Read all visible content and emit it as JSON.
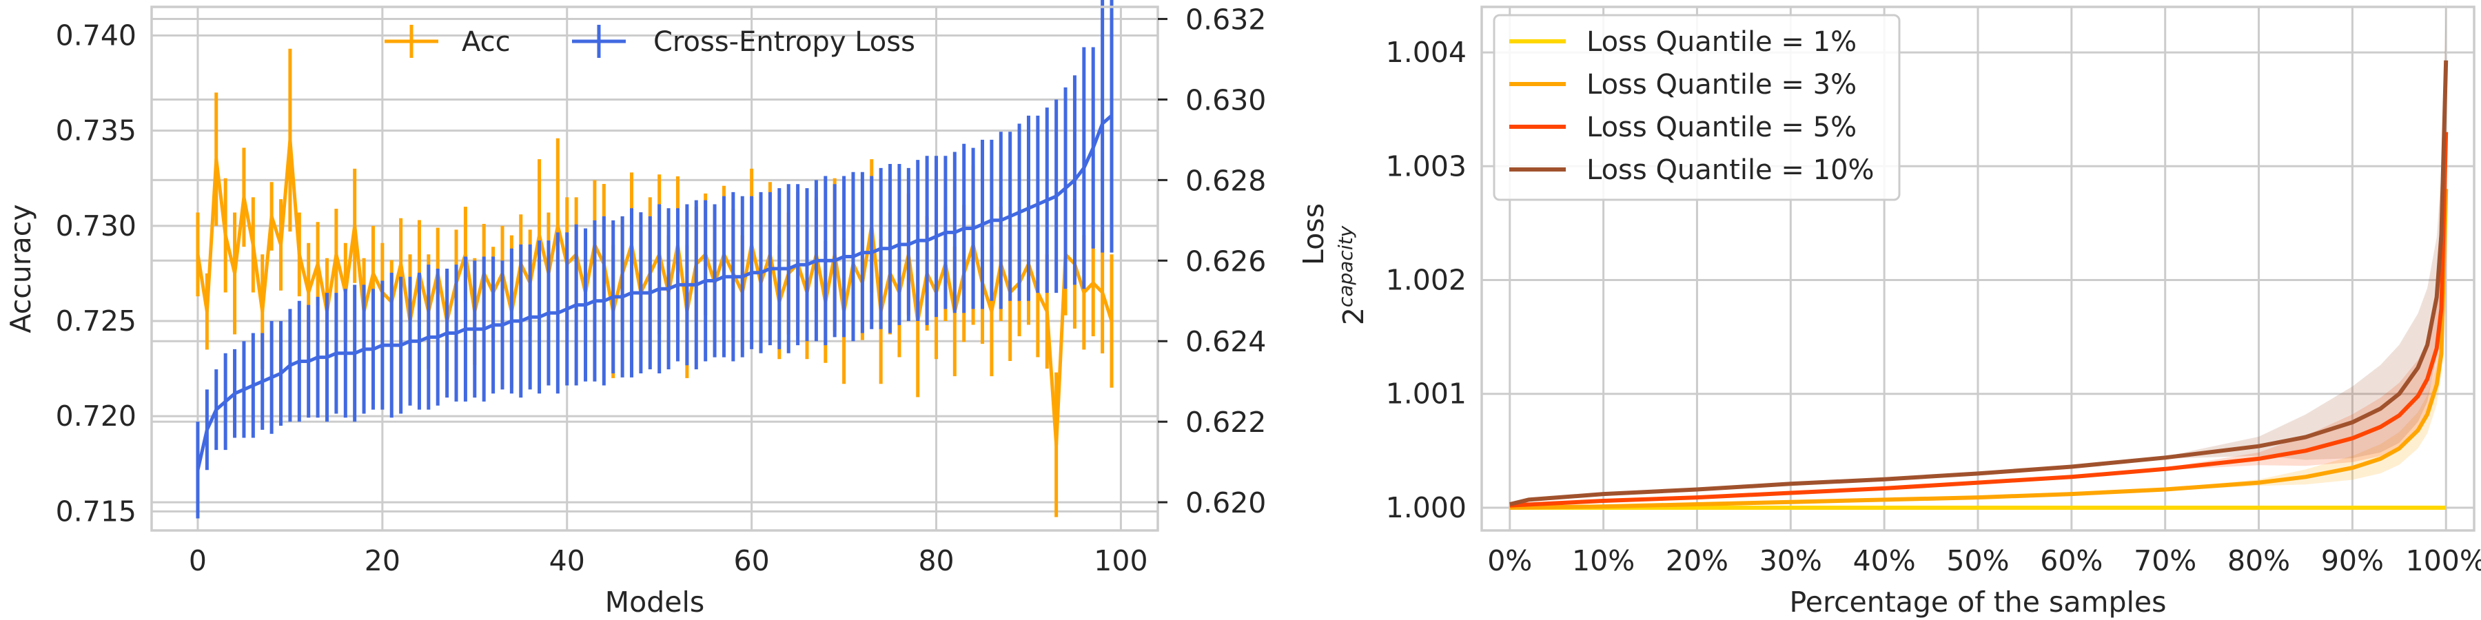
{
  "chart_data": [
    {
      "type": "line",
      "xlabel": "Models",
      "ylabel_left": "Accuracy",
      "ylabel_right": "Loss",
      "xlim": [
        -5,
        104
      ],
      "ylim_left": [
        0.714,
        0.7415
      ],
      "ylim_right": [
        0.6193,
        0.6323
      ],
      "x_ticks": [
        0,
        20,
        40,
        60,
        80,
        100
      ],
      "y_ticks_left": [
        "0.715",
        "0.720",
        "0.725",
        "0.730",
        "0.735",
        "0.740"
      ],
      "y_ticks_right": [
        "0.620",
        "0.622",
        "0.624",
        "0.626",
        "0.628",
        "0.630",
        "0.632"
      ],
      "grid": true,
      "legend_position": "top-center",
      "series": [
        {
          "name": "Acc",
          "axis": "left",
          "color": "#ffa500",
          "errorbars": true,
          "x": [
            0,
            1,
            2,
            3,
            4,
            5,
            6,
            7,
            8,
            9,
            10,
            11,
            12,
            13,
            14,
            15,
            16,
            17,
            18,
            19,
            20,
            21,
            22,
            23,
            24,
            25,
            26,
            27,
            28,
            29,
            30,
            31,
            32,
            33,
            34,
            35,
            36,
            37,
            38,
            39,
            40,
            41,
            42,
            43,
            44,
            45,
            46,
            47,
            48,
            49,
            50,
            51,
            52,
            53,
            54,
            55,
            56,
            57,
            58,
            59,
            60,
            61,
            62,
            63,
            64,
            65,
            66,
            67,
            68,
            69,
            70,
            71,
            72,
            73,
            74,
            75,
            76,
            77,
            78,
            79,
            80,
            81,
            82,
            83,
            84,
            85,
            86,
            87,
            88,
            89,
            90,
            91,
            92,
            93,
            94,
            95,
            96,
            97,
            98,
            99
          ],
          "values": [
            0.7285,
            0.7255,
            0.7335,
            0.7295,
            0.7275,
            0.7315,
            0.729,
            0.7255,
            0.7305,
            0.729,
            0.7345,
            0.7285,
            0.7265,
            0.728,
            0.7255,
            0.7285,
            0.7265,
            0.73,
            0.7255,
            0.7275,
            0.7265,
            0.726,
            0.728,
            0.725,
            0.7275,
            0.7255,
            0.7275,
            0.725,
            0.727,
            0.7285,
            0.7255,
            0.7275,
            0.7265,
            0.7275,
            0.7255,
            0.728,
            0.727,
            0.7295,
            0.7275,
            0.73,
            0.728,
            0.7285,
            0.7265,
            0.729,
            0.728,
            0.7255,
            0.7275,
            0.729,
            0.7265,
            0.7275,
            0.7285,
            0.7265,
            0.729,
            0.7255,
            0.728,
            0.7285,
            0.727,
            0.7285,
            0.7275,
            0.7265,
            0.729,
            0.727,
            0.7285,
            0.726,
            0.7275,
            0.728,
            0.7265,
            0.7285,
            0.726,
            0.7285,
            0.7255,
            0.728,
            0.727,
            0.73,
            0.7255,
            0.7275,
            0.7265,
            0.7285,
            0.725,
            0.7275,
            0.7265,
            0.728,
            0.7255,
            0.7275,
            0.729,
            0.727,
            0.7255,
            0.728,
            0.7265,
            0.727,
            0.728,
            0.7265,
            0.7255,
            0.7185,
            0.7285,
            0.728,
            0.7265,
            0.727,
            0.7265,
            0.725
          ],
          "errors": [
            0.0022,
            0.002,
            0.0035,
            0.003,
            0.0032,
            0.0026,
            0.0025,
            0.003,
            0.0018,
            0.0024,
            0.0048,
            0.0022,
            0.0026,
            0.0022,
            0.0028,
            0.0024,
            0.0026,
            0.003,
            0.0028,
            0.0025,
            0.0026,
            0.0022,
            0.0024,
            0.0035,
            0.0028,
            0.003,
            0.0024,
            0.0026,
            0.0028,
            0.0025,
            0.0028,
            0.0026,
            0.0024,
            0.0025,
            0.004,
            0.0026,
            0.0028,
            0.004,
            0.0032,
            0.0046,
            0.0035,
            0.003,
            0.0028,
            0.0034,
            0.0042,
            0.0035,
            0.003,
            0.0038,
            0.0032,
            0.004,
            0.0042,
            0.003,
            0.0036,
            0.0035,
            0.003,
            0.0032,
            0.003,
            0.0036,
            0.0034,
            0.003,
            0.004,
            0.0036,
            0.0038,
            0.003,
            0.0032,
            0.0038,
            0.0035,
            0.003,
            0.0032,
            0.004,
            0.0038,
            0.0032,
            0.003,
            0.0035,
            0.0038,
            0.0032,
            0.0034,
            0.0032,
            0.004,
            0.003,
            0.0035,
            0.003,
            0.0034,
            0.0036,
            0.0042,
            0.0032,
            0.0034,
            0.003,
            0.0036,
            0.0028,
            0.0032,
            0.0034,
            0.003,
            0.0038,
            0.0032,
            0.0034,
            0.003,
            0.0028,
            0.0032,
            0.0035
          ]
        },
        {
          "name": "Cross-Entropy Loss",
          "axis": "right",
          "color": "#4169e1",
          "errorbars": true,
          "x": [
            0,
            1,
            2,
            3,
            4,
            5,
            6,
            7,
            8,
            9,
            10,
            11,
            12,
            13,
            14,
            15,
            16,
            17,
            18,
            19,
            20,
            21,
            22,
            23,
            24,
            25,
            26,
            27,
            28,
            29,
            30,
            31,
            32,
            33,
            34,
            35,
            36,
            37,
            38,
            39,
            40,
            41,
            42,
            43,
            44,
            45,
            46,
            47,
            48,
            49,
            50,
            51,
            52,
            53,
            54,
            55,
            56,
            57,
            58,
            59,
            60,
            61,
            62,
            63,
            64,
            65,
            66,
            67,
            68,
            69,
            70,
            71,
            72,
            73,
            74,
            75,
            76,
            77,
            78,
            79,
            80,
            81,
            82,
            83,
            84,
            85,
            86,
            87,
            88,
            89,
            90,
            91,
            92,
            93,
            94,
            95,
            96,
            97,
            98,
            99
          ],
          "values": [
            0.6208,
            0.6218,
            0.6223,
            0.6225,
            0.6227,
            0.6228,
            0.6229,
            0.623,
            0.6231,
            0.6232,
            0.6234,
            0.6235,
            0.6235,
            0.6236,
            0.6236,
            0.6237,
            0.6237,
            0.6237,
            0.6238,
            0.6238,
            0.6239,
            0.6239,
            0.6239,
            0.624,
            0.624,
            0.6241,
            0.6241,
            0.6242,
            0.6242,
            0.6243,
            0.6243,
            0.6243,
            0.6244,
            0.6244,
            0.6245,
            0.6245,
            0.6246,
            0.6246,
            0.6247,
            0.6247,
            0.6248,
            0.6249,
            0.6249,
            0.625,
            0.625,
            0.6251,
            0.6251,
            0.6252,
            0.6252,
            0.6252,
            0.6253,
            0.6253,
            0.6254,
            0.6254,
            0.6254,
            0.6255,
            0.6255,
            0.6256,
            0.6256,
            0.6256,
            0.6257,
            0.6257,
            0.6258,
            0.6258,
            0.6258,
            0.6259,
            0.6259,
            0.626,
            0.626,
            0.626,
            0.6261,
            0.6261,
            0.6262,
            0.6262,
            0.6263,
            0.6263,
            0.6264,
            0.6264,
            0.6265,
            0.6265,
            0.6266,
            0.6267,
            0.6267,
            0.6268,
            0.6268,
            0.6269,
            0.627,
            0.627,
            0.6271,
            0.6272,
            0.6273,
            0.6274,
            0.6275,
            0.6276,
            0.6278,
            0.628,
            0.6283,
            0.6288,
            0.6294,
            0.6296
          ],
          "errors": [
            0.0012,
            0.001,
            0.001,
            0.0012,
            0.0011,
            0.0012,
            0.0013,
            0.0012,
            0.0014,
            0.0013,
            0.0014,
            0.0015,
            0.0014,
            0.0015,
            0.0016,
            0.0015,
            0.0016,
            0.0017,
            0.0016,
            0.0015,
            0.0016,
            0.0018,
            0.0017,
            0.0016,
            0.0017,
            0.0018,
            0.0017,
            0.0016,
            0.0017,
            0.0018,
            0.0017,
            0.0018,
            0.0017,
            0.0016,
            0.0018,
            0.0019,
            0.0018,
            0.0019,
            0.0018,
            0.002,
            0.0019,
            0.002,
            0.0019,
            0.002,
            0.0021,
            0.0019,
            0.002,
            0.0021,
            0.002,
            0.0019,
            0.0021,
            0.002,
            0.0019,
            0.002,
            0.0021,
            0.002,
            0.0019,
            0.002,
            0.0021,
            0.002,
            0.0019,
            0.002,
            0.0019,
            0.002,
            0.0021,
            0.002,
            0.0019,
            0.002,
            0.0021,
            0.0019,
            0.002,
            0.0021,
            0.002,
            0.0019,
            0.002,
            0.0021,
            0.002,
            0.0019,
            0.002,
            0.0021,
            0.002,
            0.0019,
            0.002,
            0.0021,
            0.002,
            0.0021,
            0.002,
            0.0022,
            0.0021,
            0.0022,
            0.0023,
            0.0022,
            0.0023,
            0.0024,
            0.0025,
            0.0026,
            0.003,
            0.0025,
            0.0032,
            0.0034
          ]
        }
      ]
    },
    {
      "type": "line",
      "xlabel": "Percentage of the samples",
      "ylabel": "2^capacity",
      "ylabel_base": "2",
      "ylabel_exponent": "capacity",
      "xlim": [
        -3,
        103
      ],
      "ylim": [
        0.9998,
        1.0044
      ],
      "x_ticks": [
        "0%",
        "10%",
        "20%",
        "30%",
        "40%",
        "50%",
        "60%",
        "70%",
        "80%",
        "90%",
        "100%"
      ],
      "y_ticks": [
        "1.000",
        "1.001",
        "1.002",
        "1.003",
        "1.004"
      ],
      "grid": true,
      "legend_position": "top-left",
      "series": [
        {
          "name": "Loss Quantile = 1%",
          "color": "#ffd700",
          "x": [
            0,
            100
          ],
          "values": [
            1.0,
            1.0
          ]
        },
        {
          "name": "Loss Quantile = 3%",
          "color": "#ffa500",
          "x": [
            0,
            10,
            20,
            30,
            40,
            50,
            60,
            70,
            80,
            85,
            90,
            93,
            95,
            97,
            98,
            99,
            99.5,
            100
          ],
          "values": [
            1.0,
            1.00001,
            1.00003,
            1.00005,
            1.00007,
            1.00009,
            1.00012,
            1.00016,
            1.00022,
            1.00027,
            1.00035,
            1.00043,
            1.00052,
            1.00068,
            1.00082,
            1.00108,
            1.00135,
            1.0028
          ]
        },
        {
          "name": "Loss Quantile = 5%",
          "color": "#ff4500",
          "x": [
            0,
            10,
            20,
            30,
            40,
            50,
            60,
            70,
            80,
            85,
            90,
            93,
            95,
            97,
            98,
            99,
            99.5,
            100
          ],
          "values": [
            1.00002,
            1.00006,
            1.00009,
            1.00013,
            1.00017,
            1.00022,
            1.00027,
            1.00034,
            1.00043,
            1.0005,
            1.00061,
            1.00071,
            1.00081,
            1.00098,
            1.00113,
            1.0014,
            1.00175,
            1.0033
          ]
        },
        {
          "name": "Loss Quantile = 10%",
          "color": "#a0522d",
          "x": [
            0,
            2,
            10,
            20,
            30,
            40,
            50,
            60,
            70,
            80,
            85,
            90,
            93,
            95,
            97,
            98,
            99,
            99.5,
            100
          ],
          "values": [
            1.00003,
            1.00007,
            1.00012,
            1.00016,
            1.00021,
            1.00025,
            1.0003,
            1.00036,
            1.00044,
            1.00054,
            1.00062,
            1.00075,
            1.00087,
            1.001,
            1.00123,
            1.00143,
            1.00185,
            1.0024,
            1.00393
          ]
        }
      ]
    }
  ]
}
